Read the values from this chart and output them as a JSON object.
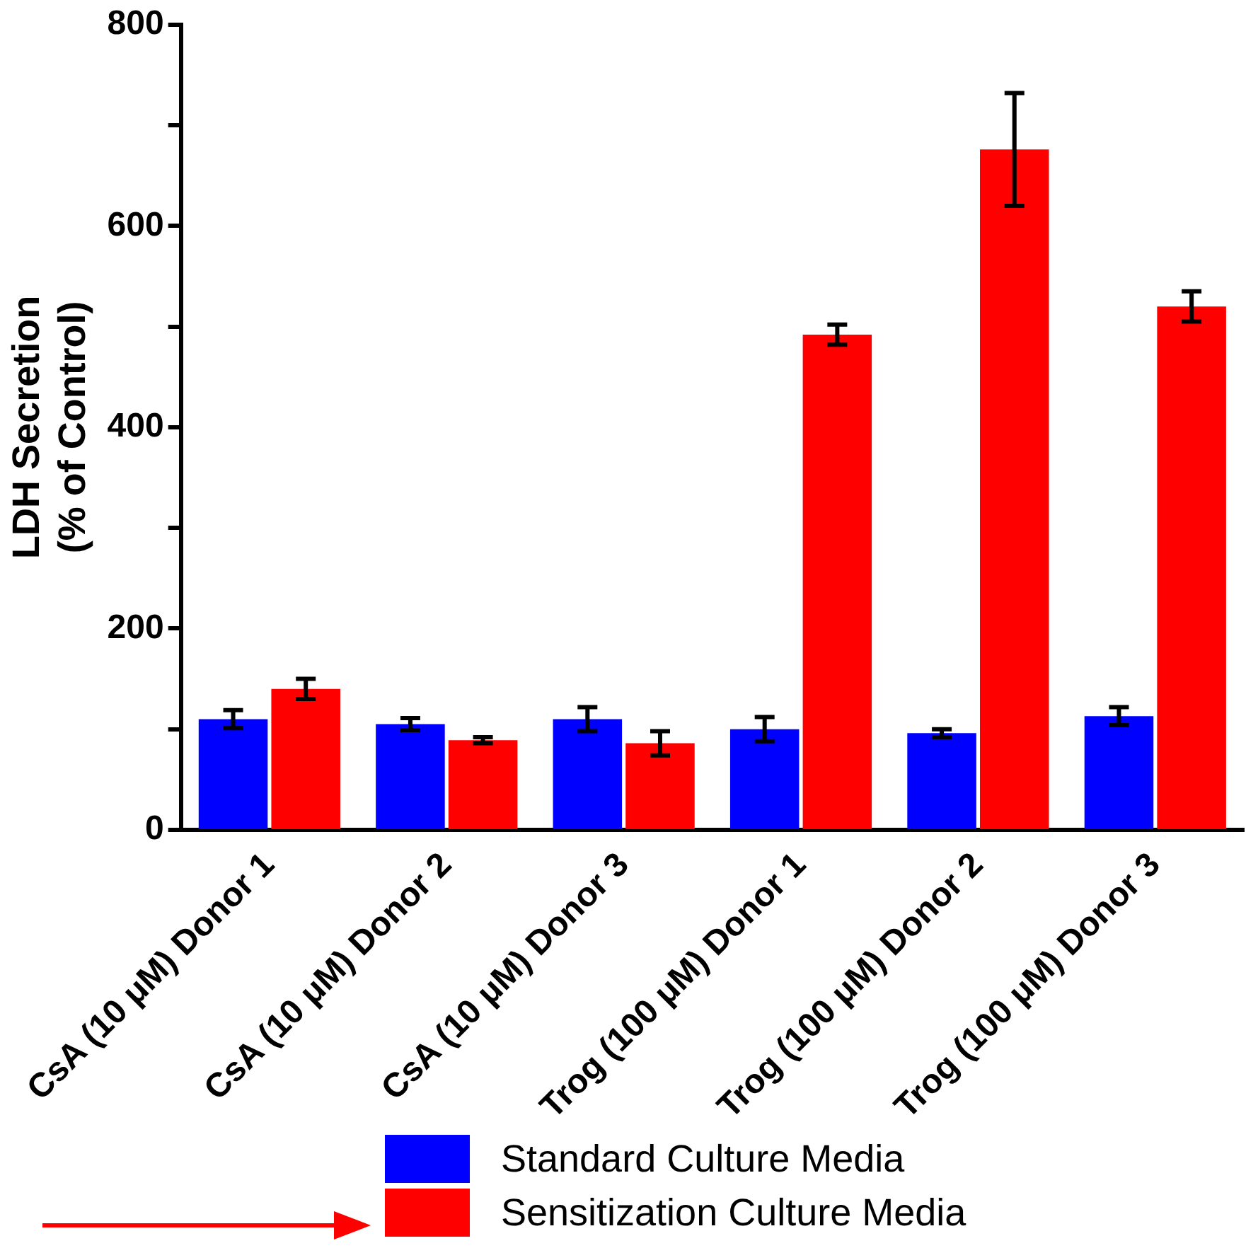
{
  "chart_data": {
    "type": "bar",
    "ylabel": "LDH Secretion\n(% of Control)",
    "categories": [
      "CsA (10 μM) Donor 1",
      "CsA (10 μM) Donor 2",
      "CsA (10 μM) Donor 3",
      "Trog (100 μM) Donor 1",
      "Trog (100 μM) Donor 2",
      "Trog (100 μM) Donor 3"
    ],
    "series": [
      {
        "name": "Standard Culture Media",
        "color": "#0000ff",
        "values": [
          110,
          105,
          110,
          100,
          96,
          113
        ],
        "errors": [
          9,
          6,
          12,
          12,
          4,
          9
        ]
      },
      {
        "name": "Sensitization Culture Media",
        "color": "#ff0000",
        "values": [
          140,
          89,
          86,
          492,
          676,
          520
        ],
        "errors": [
          10,
          3,
          12,
          10,
          56,
          15
        ]
      }
    ],
    "ylim": [
      0,
      800
    ],
    "yticks": [
      0,
      {
        "value": 100,
        "label": null
      },
      200,
      {
        "value": 300,
        "label": null
      },
      400,
      {
        "value": 500,
        "label": null
      },
      600,
      {
        "value": 700,
        "label": null
      },
      800
    ],
    "grid": false,
    "legend": "bottom"
  }
}
